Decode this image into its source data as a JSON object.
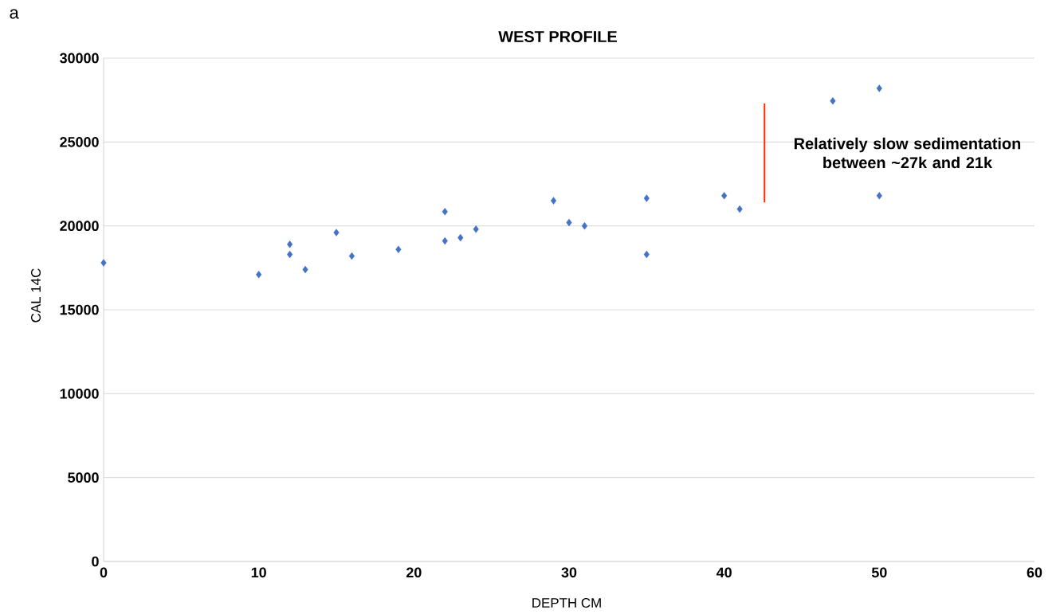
{
  "chart_data": {
    "type": "scatter",
    "title": "WEST PROFILE",
    "xlabel": "DEPTH CM",
    "ylabel": "CAL 14C",
    "xlim": [
      0,
      60
    ],
    "xticks": [
      0,
      10,
      20,
      30,
      40,
      50,
      60
    ],
    "ylim": [
      0,
      30000
    ],
    "yticks": [
      0,
      5000,
      10000,
      15000,
      20000,
      25000,
      30000
    ],
    "grid": "y",
    "marker": "diamond",
    "series": [
      {
        "color": "#4472c4",
        "x": [
          0,
          10,
          12,
          12,
          13,
          15,
          16,
          19,
          22,
          22,
          23,
          24,
          29,
          30,
          31,
          35,
          35,
          40,
          41,
          47,
          50,
          50
        ],
        "values": [
          17800,
          17100,
          18900,
          18300,
          17400,
          19600,
          18200,
          18600,
          20850,
          19100,
          19300,
          19800,
          21500,
          20200,
          20000,
          21650,
          18300,
          21800,
          21000,
          27450,
          28200,
          21800
        ]
      },
      {
        "type": "line",
        "color": "#ff2a00",
        "marker": "none",
        "x": [
          42.6,
          42.6
        ],
        "values": [
          27300,
          21400
        ]
      }
    ],
    "annotations": [
      "a",
      {
        "text": "Relatively slow sedimentation between ~27k and 21k",
        "x": 42.6,
        "y": 24350
      }
    ]
  }
}
